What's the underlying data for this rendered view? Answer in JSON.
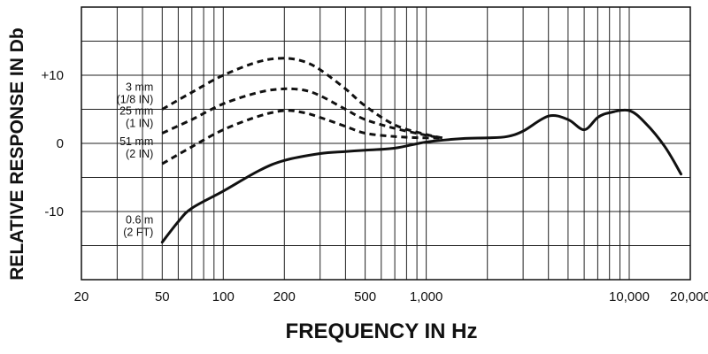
{
  "chart_data": {
    "type": "line",
    "title": "",
    "xlabel": "FREQUENCY IN Hz",
    "ylabel": "RELATIVE RESPONSE IN Db",
    "x_scale": "log",
    "xlim": [
      20,
      20000
    ],
    "ylim": [
      -20,
      20
    ],
    "grid": true,
    "x_tick_labels": [
      "20",
      "50",
      "100",
      "200",
      "500",
      "1,000",
      "10,000",
      "20,000"
    ],
    "x_tick_values": [
      20,
      50,
      100,
      200,
      500,
      1000,
      10000,
      20000
    ],
    "y_tick_labels": [
      "+10",
      "0",
      "-10"
    ],
    "y_tick_values": [
      10,
      0,
      -10
    ],
    "series": [
      {
        "annotation": [
          "3 mm",
          "(1/8 IN)"
        ],
        "style": "dashed",
        "x": [
          50,
          70,
          100,
          150,
          200,
          250,
          300,
          400,
          500,
          700,
          1000,
          1200
        ],
        "y": [
          5,
          7.5,
          10,
          12,
          12.5,
          12,
          10.8,
          8,
          5.5,
          2.7,
          1.3,
          0.8
        ]
      },
      {
        "annotation": [
          "25 mm",
          "(1 IN)"
        ],
        "style": "dashed",
        "x": [
          50,
          70,
          100,
          150,
          200,
          250,
          300,
          400,
          500,
          700,
          1000,
          1200
        ],
        "y": [
          1.5,
          3.5,
          5.8,
          7.5,
          8,
          7.8,
          7,
          5,
          3.5,
          2.2,
          1.2,
          0.8
        ]
      },
      {
        "annotation": [
          "51 mm",
          "(2 IN)"
        ],
        "style": "dashed",
        "x": [
          50,
          70,
          100,
          150,
          200,
          250,
          300,
          400,
          500,
          700,
          1000,
          1200
        ],
        "y": [
          -3,
          -0.5,
          2,
          4,
          4.8,
          4.5,
          3.8,
          2.5,
          1.5,
          1,
          0.8,
          0.8
        ]
      },
      {
        "annotation": [
          "0.6 m",
          "(2 FT)"
        ],
        "style": "solid",
        "x": [
          50,
          60,
          70,
          100,
          150,
          200,
          300,
          400,
          500,
          700,
          1000,
          1500,
          2000,
          2500,
          3000,
          4000,
          5000,
          6000,
          7000,
          8000,
          10000,
          12000,
          15000,
          18000
        ],
        "y": [
          -14.5,
          -11.5,
          -9.5,
          -7,
          -4,
          -2.5,
          -1.5,
          -1.2,
          -1,
          -0.7,
          0.2,
          0.7,
          0.8,
          1,
          1.8,
          4,
          3.5,
          2,
          3.8,
          4.5,
          4.8,
          3,
          -0.5,
          -4.5
        ]
      }
    ]
  }
}
